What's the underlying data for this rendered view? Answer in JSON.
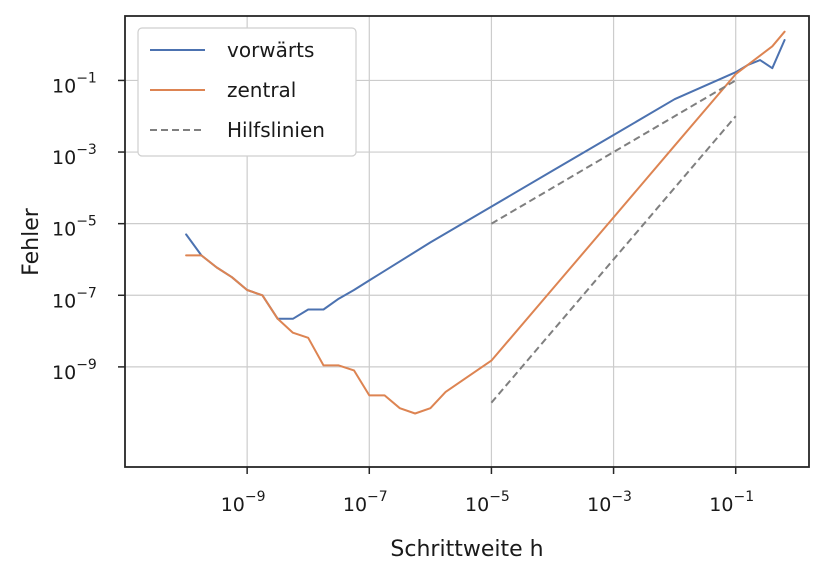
{
  "chart_data": {
    "type": "line",
    "xscale": "log",
    "yscale": "log",
    "xlim": [
      1e-11,
      1.585
    ],
    "ylim": [
      1.6e-12,
      6.3
    ],
    "xlabel": "Schrittweite h",
    "ylabel": "Fehler",
    "x_ticks": [
      {
        "value": 1e-09,
        "base": "10",
        "exp": "−9"
      },
      {
        "value": 1e-07,
        "base": "10",
        "exp": "−7"
      },
      {
        "value": 1e-05,
        "base": "10",
        "exp": "−5"
      },
      {
        "value": 0.001,
        "base": "10",
        "exp": "−3"
      },
      {
        "value": 0.1,
        "base": "10",
        "exp": "−1"
      }
    ],
    "y_ticks": [
      {
        "value": 1e-09,
        "base": "10",
        "exp": "−9"
      },
      {
        "value": 1e-07,
        "base": "10",
        "exp": "−7"
      },
      {
        "value": 1e-05,
        "base": "10",
        "exp": "−5"
      },
      {
        "value": 0.001,
        "base": "10",
        "exp": "−3"
      },
      {
        "value": 0.1,
        "base": "10",
        "exp": "−1"
      }
    ],
    "grid": true,
    "legend": "top-left",
    "series": [
      {
        "name": "vorwärts",
        "color": "#4c72b0",
        "style": "solid",
        "points": [
          [
            1e-10,
            5e-06
          ],
          [
            1.78e-10,
            1.3e-06
          ],
          [
            3.16e-10,
            6e-07
          ],
          [
            5.62e-10,
            3.2e-07
          ],
          [
            1e-09,
            1.4e-07
          ],
          [
            1.78e-09,
            1e-07
          ],
          [
            3.16e-09,
            2.2e-08
          ],
          [
            5.62e-09,
            2.2e-08
          ],
          [
            1e-08,
            4e-08
          ],
          [
            1.78e-08,
            4e-08
          ],
          [
            3.16e-08,
            8e-08
          ],
          [
            5.62e-08,
            1.4e-07
          ],
          [
            1e-07,
            2.6e-07
          ],
          [
            1e-06,
            3e-06
          ],
          [
            1e-05,
            3e-05
          ],
          [
            0.0001,
            0.0003
          ],
          [
            0.001,
            0.003
          ],
          [
            0.01,
            0.03
          ],
          [
            0.1,
            0.17
          ],
          [
            0.158,
            0.27
          ],
          [
            0.251,
            0.37
          ],
          [
            0.398,
            0.22
          ],
          [
            0.631,
            1.35
          ]
        ]
      },
      {
        "name": "zentral",
        "color": "#dd8452",
        "style": "solid",
        "points": [
          [
            1e-10,
            1.3e-06
          ],
          [
            1.78e-10,
            1.3e-06
          ],
          [
            3.16e-10,
            6e-07
          ],
          [
            5.62e-10,
            3.2e-07
          ],
          [
            1e-09,
            1.4e-07
          ],
          [
            1.78e-09,
            1e-07
          ],
          [
            3.16e-09,
            2.2e-08
          ],
          [
            5.62e-09,
            9e-09
          ],
          [
            1e-08,
            6.5e-09
          ],
          [
            1.78e-08,
            1.1e-09
          ],
          [
            3.16e-08,
            1.1e-09
          ],
          [
            5.62e-08,
            8e-10
          ],
          [
            1e-07,
            1.6e-10
          ],
          [
            1.78e-07,
            1.6e-10
          ],
          [
            3.16e-07,
            7e-11
          ],
          [
            5.62e-07,
            5e-11
          ],
          [
            1e-06,
            7e-11
          ],
          [
            1.78e-06,
            2e-10
          ],
          [
            1e-05,
            1.5e-09
          ],
          [
            0.0001,
            1.5e-07
          ],
          [
            0.001,
            1.5e-05
          ],
          [
            0.01,
            0.0015
          ],
          [
            0.1,
            0.15
          ],
          [
            0.398,
            0.9
          ],
          [
            0.631,
            2.3
          ]
        ]
      },
      {
        "name": "Hilfslinien",
        "color": "#7f7f7f",
        "style": "dashed",
        "points": [
          [
            1e-05,
            1e-05
          ],
          [
            0.1,
            0.1
          ]
        ]
      },
      {
        "name": "",
        "color": "#7f7f7f",
        "style": "dashed",
        "points": [
          [
            1e-05,
            1e-10
          ],
          [
            0.1,
            0.01
          ]
        ]
      }
    ]
  }
}
